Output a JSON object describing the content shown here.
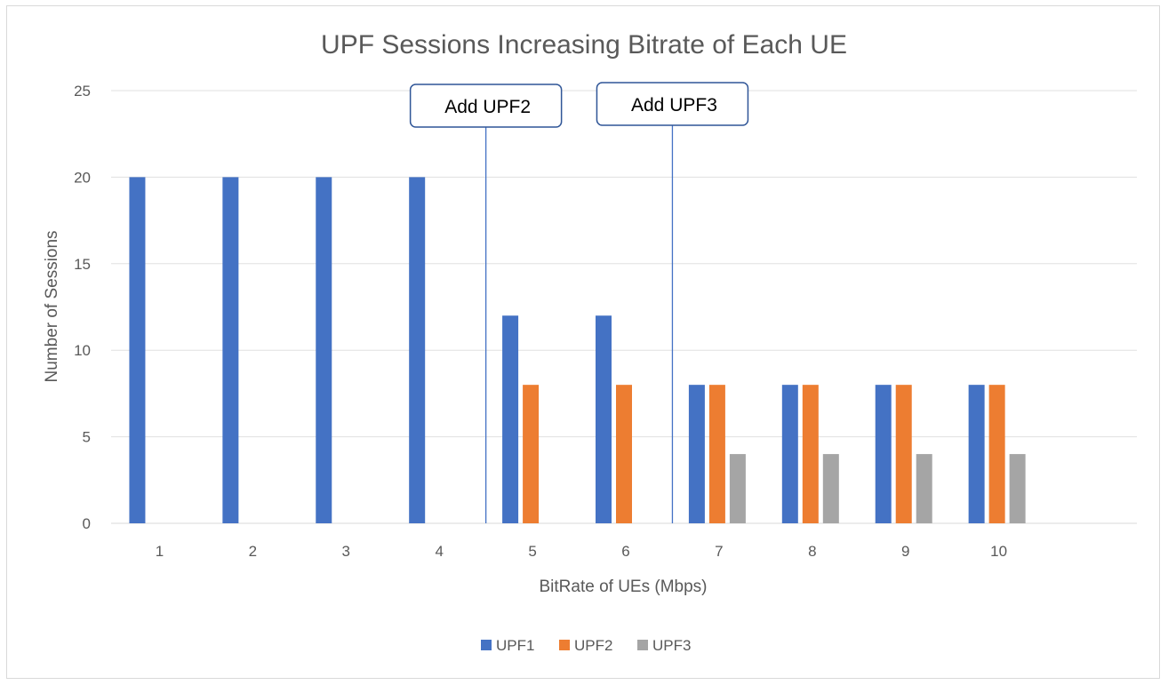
{
  "chart_data": {
    "type": "bar",
    "title": "UPF Sessions Increasing Bitrate of Each UE",
    "xlabel": "BitRate of UEs (Mbps)",
    "ylabel": "Number of Sessions",
    "ylim": [
      0,
      25
    ],
    "yticks": [
      0,
      5,
      10,
      15,
      20,
      25
    ],
    "grid": true,
    "legend_position": "bottom",
    "categories": [
      "1",
      "2",
      "3",
      "4",
      "5",
      "6",
      "7",
      "8",
      "9",
      "10"
    ],
    "series": [
      {
        "name": "UPF1",
        "color": "#4472c4",
        "values": [
          20,
          20,
          20,
          20,
          12,
          12,
          8,
          8,
          8,
          8
        ]
      },
      {
        "name": "UPF2",
        "color": "#ed7d31",
        "values": [
          0,
          0,
          0,
          0,
          8,
          8,
          8,
          8,
          8,
          8
        ]
      },
      {
        "name": "UPF3",
        "color": "#a5a5a5",
        "values": [
          0,
          0,
          0,
          0,
          0,
          0,
          4,
          4,
          4,
          4
        ]
      }
    ],
    "annotations": [
      {
        "label": "Add UPF2",
        "between_categories": [
          "4",
          "5"
        ]
      },
      {
        "label": "Add UPF3",
        "between_categories": [
          "6",
          "7"
        ]
      }
    ]
  }
}
